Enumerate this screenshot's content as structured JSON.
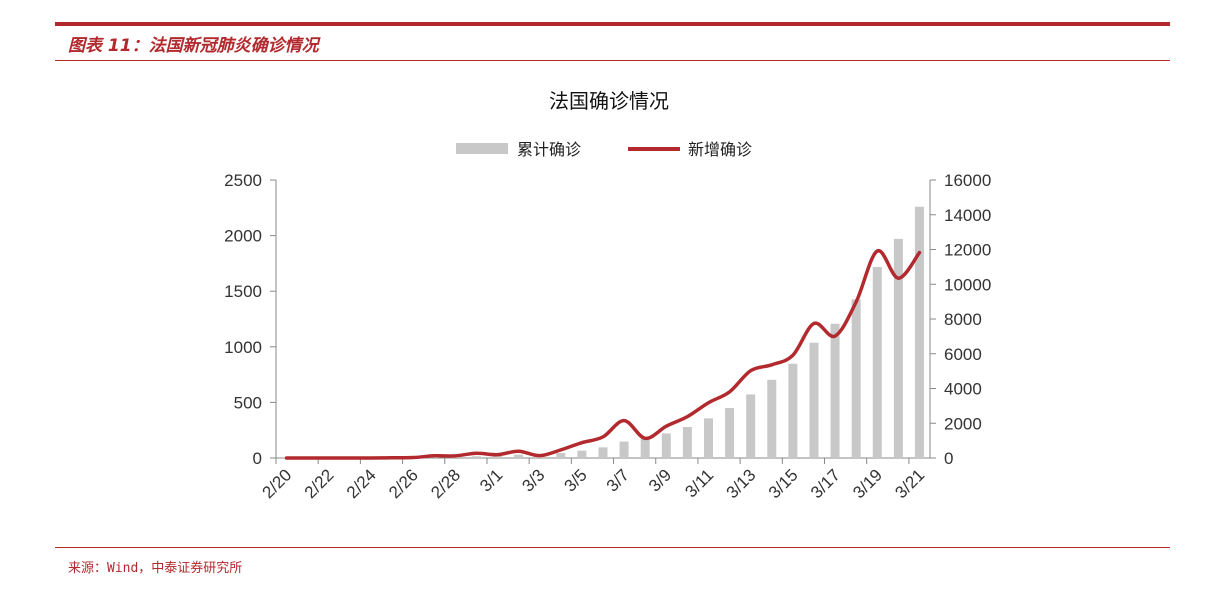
{
  "header": {
    "figure_title": "图表 11：法国新冠肺炎确诊情况"
  },
  "footer": {
    "source": "来源：Wind，中泰证券研究所"
  },
  "colors": {
    "accent": "#b22a2e",
    "bar": "#c8c8c8",
    "line": "#b22a2e"
  },
  "chart_data": {
    "type": "bar",
    "title": "法国确诊情况",
    "legend": [
      "累计确诊",
      "新增确诊"
    ],
    "legend_position": "top-center",
    "grid": false,
    "x": [
      "2/20",
      "2/21",
      "2/22",
      "2/23",
      "2/24",
      "2/25",
      "2/26",
      "2/27",
      "2/28",
      "2/29",
      "3/1",
      "3/2",
      "3/3",
      "3/4",
      "3/5",
      "3/6",
      "3/7",
      "3/8",
      "3/9",
      "3/10",
      "3/11",
      "3/12",
      "3/13",
      "3/14",
      "3/15",
      "3/16",
      "3/17",
      "3/18",
      "3/19",
      "3/20",
      "3/21"
    ],
    "x_tick_labels": [
      "2/20",
      "2/22",
      "2/24",
      "2/26",
      "2/28",
      "3/1",
      "3/3",
      "3/5",
      "3/7",
      "3/9",
      "3/11",
      "3/13",
      "3/15",
      "3/17",
      "3/19",
      "3/21"
    ],
    "y_left": {
      "ticks": [
        0,
        500,
        1000,
        1500,
        2000,
        2500
      ],
      "ylim": [
        0,
        2500
      ]
    },
    "y_right": {
      "ticks": [
        0,
        2000,
        4000,
        6000,
        8000,
        10000,
        12000,
        14000,
        16000
      ],
      "ylim": [
        0,
        16000
      ]
    },
    "series": [
      {
        "name": "累计确诊",
        "kind": "bar",
        "axis": "right",
        "values": [
          12,
          12,
          12,
          12,
          12,
          14,
          18,
          38,
          57,
          100,
          130,
          191,
          212,
          285,
          423,
          613,
          949,
          1126,
          1412,
          1784,
          2281,
          2876,
          3661,
          4499,
          5423,
          6633,
          7730,
          9134,
          10995,
          12612,
          14459
        ]
      },
      {
        "name": "新增确诊",
        "kind": "line",
        "axis": "left",
        "values": [
          0,
          0,
          0,
          0,
          0,
          2,
          4,
          20,
          19,
          43,
          30,
          61,
          21,
          73,
          138,
          190,
          336,
          177,
          286,
          372,
          497,
          595,
          785,
          838,
          924,
          1210,
          1097,
          1404,
          1861,
          1617,
          1847
        ]
      }
    ]
  }
}
